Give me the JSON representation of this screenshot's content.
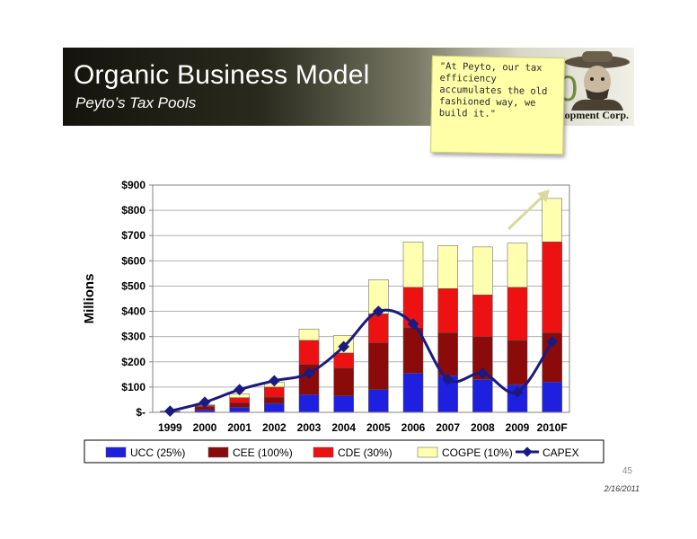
{
  "slide": {
    "title": "Organic Business Model",
    "subtitle": "Peyto’s Tax Pools",
    "logo_text": "Development Corp.",
    "logo_letter": "0",
    "note": "\"At Peyto, our tax efficiency accumulates the old fashioned way, we build it.\"",
    "page_number": "45",
    "date": "2/16/2011"
  },
  "chart_data": {
    "type": "bar",
    "stacked": true,
    "categories": [
      "1999",
      "2000",
      "2001",
      "2002",
      "2003",
      "2004",
      "2005",
      "2006",
      "2007",
      "2008",
      "2009",
      "2010F"
    ],
    "ylabel": "Millions",
    "ylim": [
      0,
      900
    ],
    "yticks": [
      0,
      100,
      200,
      300,
      400,
      500,
      600,
      700,
      800,
      900
    ],
    "ytick_labels": [
      "$-",
      "$100",
      "$200",
      "$300",
      "$400",
      "$500",
      "$600",
      "$700",
      "$800",
      "$900"
    ],
    "grid": true,
    "legend_position": "bottom",
    "series": [
      {
        "name": "UCC (25%)",
        "kind": "bar",
        "color": "#1f1fe0",
        "values": [
          2,
          10,
          20,
          35,
          70,
          65,
          90,
          155,
          145,
          130,
          110,
          120
        ]
      },
      {
        "name": "CEE (100%)",
        "kind": "bar",
        "color": "#8b0b0b",
        "values": [
          2,
          12,
          18,
          25,
          120,
          110,
          185,
          180,
          170,
          170,
          175,
          195
        ]
      },
      {
        "name": "CDE (30%)",
        "kind": "bar",
        "color": "#ee1111",
        "values": [
          1,
          5,
          20,
          40,
          95,
          60,
          115,
          160,
          175,
          165,
          210,
          360
        ]
      },
      {
        "name": "COGPE (10%)",
        "kind": "bar",
        "color": "#ffffb0",
        "values": [
          0,
          3,
          15,
          20,
          45,
          70,
          135,
          180,
          170,
          190,
          175,
          172
        ]
      },
      {
        "name": "CAPEX",
        "kind": "line",
        "color": "#1a1a80",
        "values": [
          5,
          40,
          90,
          125,
          155,
          260,
          400,
          350,
          130,
          155,
          80,
          280
        ]
      }
    ]
  }
}
